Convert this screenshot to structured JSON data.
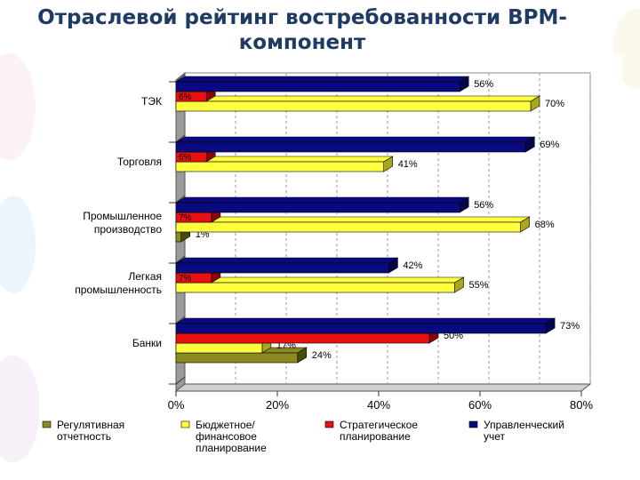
{
  "page": {
    "title_line1": "Отраслевой рейтинг востребованности BPM-",
    "title_line2": "компонент"
  },
  "chart_data": {
    "type": "bar",
    "orientation": "horizontal",
    "title": "",
    "xlabel": "",
    "ylabel": "",
    "xlim": [
      0,
      80
    ],
    "x_ticks": [
      "0%",
      "20%",
      "40%",
      "60%",
      "80%"
    ],
    "grid": true,
    "legend_position": "bottom",
    "categories": [
      "ТЭК",
      "Торговля",
      "Промышленное производство",
      "Легкая промышленность",
      "Банки"
    ],
    "category_labels": [
      [
        "ТЭК"
      ],
      [
        "Торговля"
      ],
      [
        "Промышленное",
        "производство"
      ],
      [
        "Легкая",
        "промышленность"
      ],
      [
        "Банки"
      ]
    ],
    "series": [
      {
        "name": "Управленческий учет",
        "legend_lines": [
          "Управленческий",
          "учет"
        ],
        "color": "#0a0a80",
        "shade": "#05054a",
        "values": [
          56,
          69,
          56,
          42,
          73
        ],
        "labels": [
          "56%",
          "69%",
          "56%",
          "42%",
          "73%"
        ]
      },
      {
        "name": "Стратегическое планирование",
        "legend_lines": [
          "Стратегическое",
          "планирование"
        ],
        "color": "#e81010",
        "shade": "#8a0606",
        "values": [
          6,
          6,
          7,
          7,
          50
        ],
        "labels": [
          "6%",
          "6%",
          "7%",
          "7%",
          "50%"
        ]
      },
      {
        "name": "Бюджетное/ финансовое планирование",
        "legend_lines": [
          "Бюджетное/",
          "финансовое",
          "планирование"
        ],
        "color": "#ffff40",
        "shade": "#a8a820",
        "values": [
          70,
          41,
          68,
          55,
          17
        ],
        "labels": [
          "70%",
          "41%",
          "68%",
          "55%",
          "17%"
        ]
      },
      {
        "name": "Регулятивная отчетность",
        "legend_lines": [
          "Регулятивная",
          "отчетность"
        ],
        "color": "#8a8a20",
        "shade": "#4a4a0a",
        "values": [
          0,
          0,
          1,
          0,
          24
        ],
        "labels": [
          "",
          "",
          "1%",
          "",
          "24%"
        ]
      }
    ]
  }
}
